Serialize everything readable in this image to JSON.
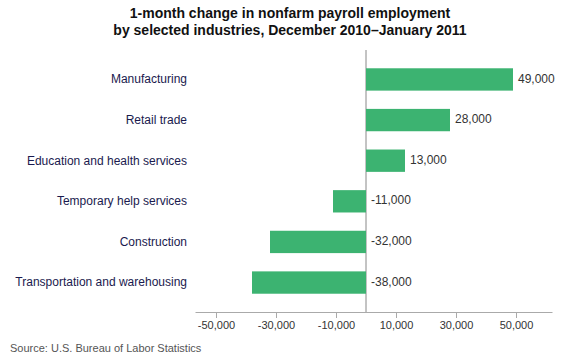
{
  "chart_data": {
    "type": "bar",
    "orientation": "horizontal",
    "title": "1-month change in nonfarm payroll employment\nby selected industries, December 2010–January 2011",
    "categories": [
      "Transportation and warehousing",
      "Construction",
      "Temporary help services",
      "Education and health services",
      "Retail trade",
      "Manufacturing"
    ],
    "values": [
      -38000,
      -32000,
      -11000,
      13000,
      28000,
      49000
    ],
    "value_labels": [
      "-38,000",
      "-32,000",
      "-11,000",
      "13,000",
      "28,000",
      "49,000"
    ],
    "data_labels": true,
    "color": "#3CB371",
    "xlim": [
      -57000,
      62000
    ],
    "xticks": [
      {
        "value": -50000,
        "label": "-50,000"
      },
      {
        "value": -30000,
        "label": "-30,000"
      },
      {
        "value": -10000,
        "label": "-10,000"
      },
      {
        "value": 10000,
        "label": "10,000"
      },
      {
        "value": 30000,
        "label": "30,000"
      },
      {
        "value": 50000,
        "label": "50,000"
      }
    ],
    "grid": false,
    "annotations": [
      "Source: U.S. Bureau of Labor Statistics"
    ]
  }
}
